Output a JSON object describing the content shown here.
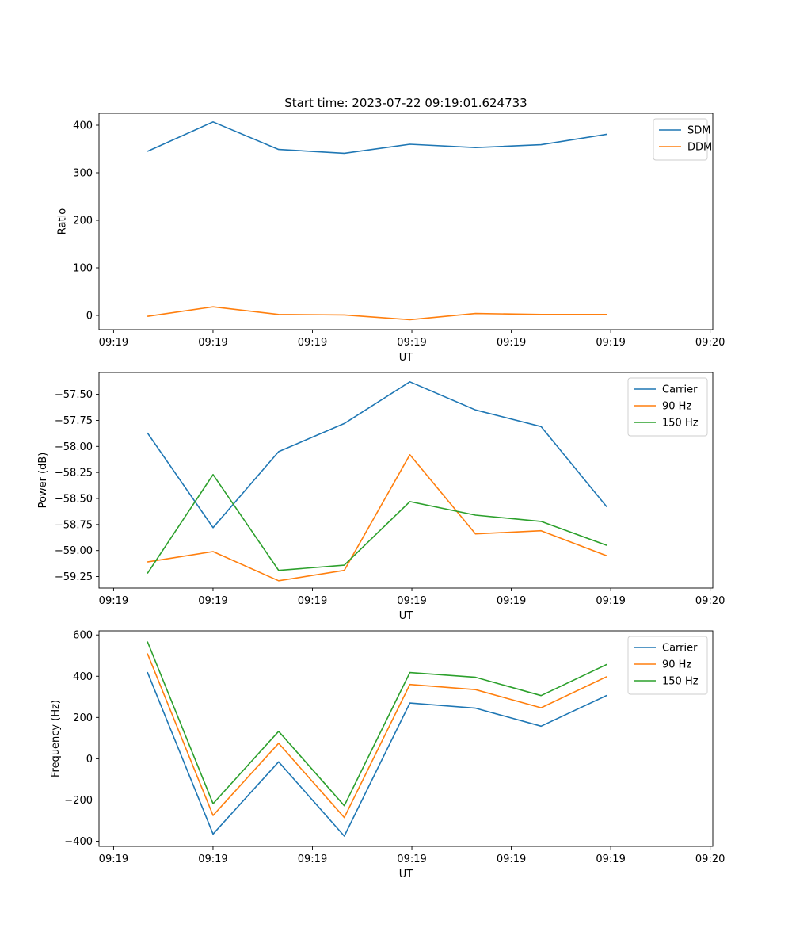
{
  "chart_data": [
    {
      "type": "line",
      "title": "Start time: 2023-07-22 09:19:01.624733",
      "xlabel": "UT",
      "ylabel": "Ratio",
      "xlim": [
        -0.38,
        8.88
      ],
      "ylim": [
        -30,
        425
      ],
      "x": [
        0.35,
        1.34,
        2.33,
        3.32,
        4.31,
        5.3,
        6.29,
        7.28
      ],
      "x_ticks": [
        {
          "pos": -0.16,
          "label": "09:19"
        },
        {
          "pos": 1.34,
          "label": "09:19"
        },
        {
          "pos": 2.84,
          "label": "09:19"
        },
        {
          "pos": 4.34,
          "label": "09:19"
        },
        {
          "pos": 5.84,
          "label": "09:19"
        },
        {
          "pos": 7.34,
          "label": "09:19"
        },
        {
          "pos": 8.84,
          "label": "09:20"
        }
      ],
      "y_ticks": [
        {
          "value": 0,
          "label": "0"
        },
        {
          "value": 100,
          "label": "100"
        },
        {
          "value": 200,
          "label": "200"
        },
        {
          "value": 300,
          "label": "300"
        },
        {
          "value": 400,
          "label": "400"
        }
      ],
      "legend_position": "top-right",
      "series": [
        {
          "name": "SDM",
          "color": "#1f77b4",
          "values": [
            345,
            407,
            349,
            341,
            360,
            353,
            359,
            381
          ]
        },
        {
          "name": "DDM",
          "color": "#ff7f0e",
          "values": [
            -2,
            18,
            2,
            1,
            -9,
            4,
            2,
            2
          ]
        }
      ]
    },
    {
      "type": "line",
      "title": "",
      "xlabel": "UT",
      "ylabel": "Power (dB)",
      "xlim": [
        -0.38,
        8.88
      ],
      "ylim": [
        -59.36,
        -57.29
      ],
      "x": [
        0.35,
        1.34,
        2.33,
        3.32,
        4.31,
        5.3,
        6.29,
        7.28
      ],
      "x_ticks": [
        {
          "pos": -0.16,
          "label": "09:19"
        },
        {
          "pos": 1.34,
          "label": "09:19"
        },
        {
          "pos": 2.84,
          "label": "09:19"
        },
        {
          "pos": 4.34,
          "label": "09:19"
        },
        {
          "pos": 5.84,
          "label": "09:19"
        },
        {
          "pos": 7.34,
          "label": "09:19"
        },
        {
          "pos": 8.84,
          "label": "09:20"
        }
      ],
      "y_ticks": [
        {
          "value": -59.25,
          "label": "−59.25"
        },
        {
          "value": -59.0,
          "label": "−59.00"
        },
        {
          "value": -58.75,
          "label": "−58.75"
        },
        {
          "value": -58.5,
          "label": "−58.50"
        },
        {
          "value": -58.25,
          "label": "−58.25"
        },
        {
          "value": -58.0,
          "label": "−58.00"
        },
        {
          "value": -57.75,
          "label": "−57.75"
        },
        {
          "value": -57.5,
          "label": "−57.50"
        }
      ],
      "legend_position": "top-right",
      "series": [
        {
          "name": "Carrier",
          "color": "#1f77b4",
          "values": [
            -57.87,
            -58.78,
            -58.05,
            -57.78,
            -57.38,
            -57.65,
            -57.81,
            -58.58
          ]
        },
        {
          "name": "90 Hz",
          "color": "#ff7f0e",
          "values": [
            -59.11,
            -59.01,
            -59.29,
            -59.19,
            -58.08,
            -58.84,
            -58.81,
            -59.05
          ]
        },
        {
          "name": "150 Hz",
          "color": "#2ca02c",
          "values": [
            -59.22,
            -58.27,
            -59.19,
            -59.14,
            -58.53,
            -58.66,
            -58.72,
            -58.95
          ]
        }
      ]
    },
    {
      "type": "line",
      "title": "",
      "xlabel": "UT",
      "ylabel": "Frequency (Hz)",
      "xlim": [
        -0.38,
        8.88
      ],
      "ylim": [
        -425,
        620
      ],
      "x": [
        0.35,
        1.34,
        2.33,
        3.32,
        4.31,
        5.3,
        6.29,
        7.28
      ],
      "x_ticks": [
        {
          "pos": -0.16,
          "label": "09:19"
        },
        {
          "pos": 1.34,
          "label": "09:19"
        },
        {
          "pos": 2.84,
          "label": "09:19"
        },
        {
          "pos": 4.34,
          "label": "09:19"
        },
        {
          "pos": 5.84,
          "label": "09:19"
        },
        {
          "pos": 7.34,
          "label": "09:19"
        },
        {
          "pos": 8.84,
          "label": "09:20"
        }
      ],
      "y_ticks": [
        {
          "value": -400,
          "label": "−400"
        },
        {
          "value": -200,
          "label": "−200"
        },
        {
          "value": 0,
          "label": "0"
        },
        {
          "value": 200,
          "label": "200"
        },
        {
          "value": 400,
          "label": "400"
        },
        {
          "value": 600,
          "label": "600"
        }
      ],
      "legend_position": "top-right",
      "series": [
        {
          "name": "Carrier",
          "color": "#1f77b4",
          "values": [
            420,
            -365,
            -15,
            -375,
            270,
            245,
            158,
            307
          ]
        },
        {
          "name": "90 Hz",
          "color": "#ff7f0e",
          "values": [
            510,
            -275,
            75,
            -285,
            360,
            335,
            247,
            398
          ]
        },
        {
          "name": "150 Hz",
          "color": "#2ca02c",
          "values": [
            568,
            -218,
            133,
            -228,
            418,
            395,
            306,
            457
          ]
        }
      ]
    }
  ]
}
